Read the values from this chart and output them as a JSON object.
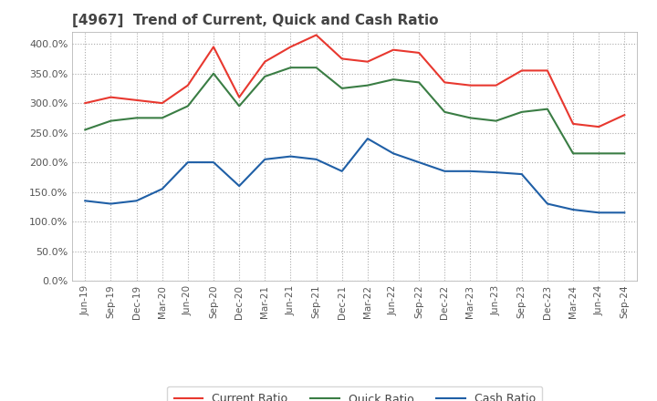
{
  "title": "[4967]  Trend of Current, Quick and Cash Ratio",
  "x_labels": [
    "Jun-19",
    "Sep-19",
    "Dec-19",
    "Mar-20",
    "Jun-20",
    "Sep-20",
    "Dec-20",
    "Mar-21",
    "Jun-21",
    "Sep-21",
    "Dec-21",
    "Mar-22",
    "Jun-22",
    "Sep-22",
    "Dec-22",
    "Mar-23",
    "Jun-23",
    "Sep-23",
    "Dec-23",
    "Mar-24",
    "Jun-24",
    "Sep-24"
  ],
  "current_ratio": [
    300,
    310,
    305,
    300,
    330,
    395,
    310,
    370,
    395,
    415,
    375,
    370,
    390,
    385,
    335,
    330,
    330,
    355,
    355,
    265,
    260,
    280
  ],
  "quick_ratio": [
    255,
    270,
    275,
    275,
    295,
    350,
    295,
    345,
    360,
    360,
    325,
    330,
    340,
    335,
    285,
    275,
    270,
    285,
    290,
    215,
    215,
    215
  ],
  "cash_ratio": [
    135,
    130,
    135,
    155,
    200,
    200,
    160,
    205,
    210,
    205,
    185,
    240,
    215,
    200,
    185,
    185,
    183,
    180,
    130,
    120,
    115,
    115
  ],
  "ylim": [
    0,
    420
  ],
  "yticks": [
    0,
    50,
    100,
    150,
    200,
    250,
    300,
    350,
    400
  ],
  "current_color": "#e8382f",
  "quick_color": "#3a7d44",
  "cash_color": "#1f5fa6",
  "background_color": "#ffffff",
  "plot_bg_color": "#ffffff",
  "grid_color": "#aaaaaa",
  "title_color": "#444444",
  "legend_labels": [
    "Current Ratio",
    "Quick Ratio",
    "Cash Ratio"
  ]
}
